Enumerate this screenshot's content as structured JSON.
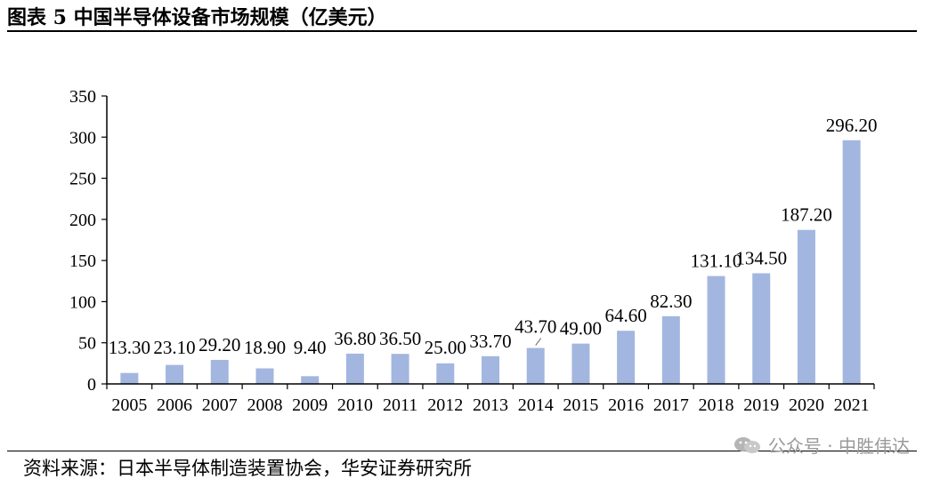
{
  "header": {
    "title": "图表 5 中国半导体设备市场规模（亿美元）"
  },
  "footer": {
    "source": "资料来源：日本半导体制造装置协会，华安证券研究所",
    "watermark": "公众号 · 中胜伟达",
    "watermark_icon": "wechat-icon"
  },
  "colors": {
    "bar": "#a3b6e0",
    "axis": "#000000",
    "watermark": "#9a9a9a"
  },
  "chart_data": {
    "type": "bar",
    "title": "",
    "xlabel": "",
    "ylabel": "",
    "categories": [
      "2005",
      "2006",
      "2007",
      "2008",
      "2009",
      "2010",
      "2011",
      "2012",
      "2013",
      "2014",
      "2015",
      "2016",
      "2017",
      "2018",
      "2019",
      "2020",
      "2021"
    ],
    "values": [
      13.3,
      23.1,
      29.2,
      18.9,
      9.4,
      36.8,
      36.5,
      25.0,
      33.7,
      43.7,
      49.0,
      64.6,
      82.3,
      131.1,
      134.5,
      187.2,
      296.2
    ],
    "value_labels": [
      "13.30",
      "23.10",
      "29.20",
      "18.90",
      "9.40",
      "36.80",
      "36.50",
      "25.00",
      "33.70",
      "43.70",
      "49.00",
      "64.60",
      "82.30",
      "131.10",
      "134.50",
      "187.20",
      "296.20"
    ],
    "ylim": [
      0,
      350
    ],
    "yticks": [
      "0",
      "50",
      "100",
      "150",
      "200",
      "250",
      "300",
      "350"
    ],
    "grid": false,
    "legend": "none"
  }
}
